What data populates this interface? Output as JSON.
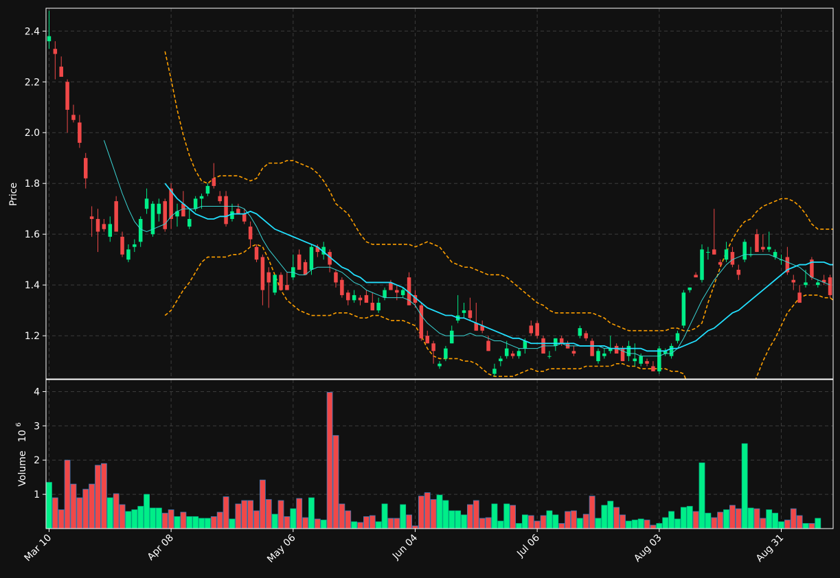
{
  "chart_data": {
    "type": "candlestick",
    "colors": {
      "background": "#111111",
      "up": "#00ee88",
      "down": "#f04848",
      "grid": "#3c3c3c",
      "frame": "#ffffff",
      "ma_short": "#3ad6d6",
      "ma_long": "#22e0ff",
      "band": "#ffa000"
    },
    "x_ticks": [
      "Mar 10",
      "Apr 08",
      "May 06",
      "Jun 04",
      "Jul 06",
      "Aug 03",
      "Aug 31"
    ],
    "x_tick_index": [
      0,
      20,
      40,
      60,
      80,
      100,
      120
    ],
    "price_panel": {
      "ylabel": "Price",
      "ylim": [
        1.03,
        2.49
      ],
      "yticks": [
        "1.2",
        "1.4",
        "1.6",
        "1.8",
        "2.0",
        "2.2",
        "2.4"
      ],
      "ytick_values": [
        1.2,
        1.4,
        1.6,
        1.8,
        2.0,
        2.2,
        2.4
      ]
    },
    "volume_panel": {
      "ylabel": "Volume",
      "exponent_label": "10",
      "exponent": "6",
      "ylim": [
        0,
        4.35
      ],
      "yticks": [
        "1",
        "2",
        "3",
        "4"
      ],
      "ytick_values": [
        1,
        2,
        3,
        4
      ]
    },
    "ohlc": [
      [
        2.36,
        2.48,
        2.33,
        2.38
      ],
      [
        2.33,
        2.36,
        2.21,
        2.31
      ],
      [
        2.26,
        2.3,
        2.23,
        2.22
      ],
      [
        2.2,
        2.21,
        2.0,
        2.09
      ],
      [
        2.07,
        2.11,
        2.04,
        2.05
      ],
      [
        2.04,
        2.07,
        1.94,
        1.96
      ],
      [
        1.9,
        1.92,
        1.78,
        1.82
      ],
      [
        1.67,
        1.71,
        1.59,
        1.66
      ],
      [
        1.66,
        1.7,
        1.53,
        1.61
      ],
      [
        1.64,
        1.66,
        1.61,
        1.62
      ],
      [
        1.59,
        1.67,
        1.57,
        1.64
      ],
      [
        1.73,
        1.75,
        1.61,
        1.61
      ],
      [
        1.59,
        1.61,
        1.51,
        1.52
      ],
      [
        1.5,
        1.56,
        1.49,
        1.54
      ],
      [
        1.55,
        1.58,
        1.53,
        1.56
      ],
      [
        1.57,
        1.67,
        1.55,
        1.66
      ],
      [
        1.7,
        1.78,
        1.68,
        1.74
      ],
      [
        1.6,
        1.73,
        1.59,
        1.72
      ],
      [
        1.68,
        1.74,
        1.65,
        1.72
      ],
      [
        1.73,
        1.74,
        1.61,
        1.62
      ],
      [
        1.78,
        1.8,
        1.62,
        1.66
      ],
      [
        1.67,
        1.72,
        1.63,
        1.69
      ],
      [
        1.72,
        1.77,
        1.68,
        1.67
      ],
      [
        1.63,
        1.7,
        1.62,
        1.66
      ],
      [
        1.7,
        1.75,
        1.69,
        1.74
      ],
      [
        1.74,
        1.76,
        1.7,
        1.75
      ],
      [
        1.76,
        1.8,
        1.75,
        1.79
      ],
      [
        1.82,
        1.88,
        1.78,
        1.79
      ],
      [
        1.75,
        1.77,
        1.72,
        1.73
      ],
      [
        1.75,
        1.77,
        1.63,
        1.64
      ],
      [
        1.66,
        1.72,
        1.65,
        1.69
      ],
      [
        1.7,
        1.72,
        1.68,
        1.68
      ],
      [
        1.68,
        1.7,
        1.64,
        1.65
      ],
      [
        1.63,
        1.65,
        1.55,
        1.58
      ],
      [
        1.55,
        1.56,
        1.49,
        1.5
      ],
      [
        1.51,
        1.52,
        1.32,
        1.38
      ],
      [
        1.45,
        1.47,
        1.31,
        1.41
      ],
      [
        1.37,
        1.44,
        1.36,
        1.44
      ],
      [
        1.44,
        1.45,
        1.38,
        1.38
      ],
      [
        1.4,
        1.45,
        1.38,
        1.38
      ],
      [
        1.43,
        1.52,
        1.42,
        1.47
      ],
      [
        1.52,
        1.54,
        1.46,
        1.46
      ],
      [
        1.49,
        1.5,
        1.45,
        1.44
      ],
      [
        1.46,
        1.56,
        1.44,
        1.55
      ],
      [
        1.55,
        1.56,
        1.51,
        1.53
      ],
      [
        1.52,
        1.57,
        1.5,
        1.55
      ],
      [
        1.53,
        1.54,
        1.45,
        1.48
      ],
      [
        1.45,
        1.46,
        1.39,
        1.41
      ],
      [
        1.42,
        1.43,
        1.35,
        1.36
      ],
      [
        1.37,
        1.38,
        1.32,
        1.34
      ],
      [
        1.34,
        1.38,
        1.33,
        1.36
      ],
      [
        1.35,
        1.36,
        1.32,
        1.34
      ],
      [
        1.36,
        1.38,
        1.33,
        1.33
      ],
      [
        1.33,
        1.37,
        1.3,
        1.3
      ],
      [
        1.3,
        1.35,
        1.29,
        1.33
      ],
      [
        1.35,
        1.39,
        1.34,
        1.38
      ],
      [
        1.41,
        1.42,
        1.38,
        1.38
      ],
      [
        1.38,
        1.4,
        1.34,
        1.37
      ],
      [
        1.36,
        1.39,
        1.35,
        1.38
      ],
      [
        1.43,
        1.45,
        1.32,
        1.32
      ],
      [
        1.36,
        1.38,
        1.31,
        1.33
      ],
      [
        1.32,
        1.33,
        1.18,
        1.19
      ],
      [
        1.2,
        1.22,
        1.17,
        1.17
      ],
      [
        1.17,
        1.18,
        1.09,
        1.14
      ],
      [
        1.08,
        1.1,
        1.07,
        1.09
      ],
      [
        1.11,
        1.16,
        1.1,
        1.15
      ],
      [
        1.17,
        1.24,
        1.17,
        1.22
      ],
      [
        1.26,
        1.36,
        1.25,
        1.28
      ],
      [
        1.29,
        1.33,
        1.27,
        1.3
      ],
      [
        1.3,
        1.35,
        1.26,
        1.27
      ],
      [
        1.25,
        1.33,
        1.22,
        1.22
      ],
      [
        1.24,
        1.26,
        1.21,
        1.22
      ],
      [
        1.18,
        1.2,
        1.14,
        1.14
      ],
      [
        1.05,
        1.09,
        1.04,
        1.07
      ],
      [
        1.1,
        1.12,
        1.08,
        1.11
      ],
      [
        1.12,
        1.18,
        1.11,
        1.15
      ],
      [
        1.13,
        1.14,
        1.11,
        1.12
      ],
      [
        1.12,
        1.15,
        1.11,
        1.14
      ],
      [
        1.15,
        1.19,
        1.13,
        1.18
      ],
      [
        1.24,
        1.26,
        1.2,
        1.21
      ],
      [
        1.25,
        1.26,
        1.19,
        1.2
      ],
      [
        1.19,
        1.2,
        1.13,
        1.13
      ],
      [
        1.12,
        1.14,
        1.11,
        1.12
      ],
      [
        1.16,
        1.19,
        1.14,
        1.19
      ],
      [
        1.19,
        1.2,
        1.16,
        1.17
      ],
      [
        1.17,
        1.18,
        1.15,
        1.15
      ],
      [
        1.14,
        1.16,
        1.12,
        1.13
      ],
      [
        1.2,
        1.24,
        1.19,
        1.23
      ],
      [
        1.21,
        1.22,
        1.18,
        1.19
      ],
      [
        1.18,
        1.19,
        1.12,
        1.12
      ],
      [
        1.1,
        1.15,
        1.09,
        1.14
      ],
      [
        1.12,
        1.15,
        1.11,
        1.13
      ],
      [
        1.14,
        1.2,
        1.13,
        1.15
      ],
      [
        1.16,
        1.17,
        1.13,
        1.13
      ],
      [
        1.15,
        1.16,
        1.1,
        1.1
      ],
      [
        1.12,
        1.18,
        1.1,
        1.16
      ],
      [
        1.1,
        1.17,
        1.08,
        1.11
      ],
      [
        1.09,
        1.13,
        1.08,
        1.12
      ],
      [
        1.1,
        1.11,
        1.08,
        1.09
      ],
      [
        1.08,
        1.1,
        1.06,
        1.06
      ],
      [
        1.06,
        1.16,
        1.05,
        1.15
      ],
      [
        1.13,
        1.15,
        1.12,
        1.14
      ],
      [
        1.12,
        1.17,
        1.11,
        1.16
      ],
      [
        1.18,
        1.22,
        1.17,
        1.21
      ],
      [
        1.24,
        1.38,
        1.23,
        1.37
      ],
      [
        1.38,
        1.39,
        1.37,
        1.39
      ],
      [
        1.44,
        1.45,
        1.43,
        1.43
      ],
      [
        1.42,
        1.56,
        1.41,
        1.54
      ],
      [
        1.53,
        1.55,
        1.5,
        1.53
      ],
      [
        1.54,
        1.7,
        1.52,
        1.52
      ],
      [
        1.49,
        1.5,
        1.47,
        1.48
      ],
      [
        1.5,
        1.57,
        1.49,
        1.54
      ],
      [
        1.53,
        1.55,
        1.47,
        1.48
      ],
      [
        1.46,
        1.48,
        1.42,
        1.44
      ],
      [
        1.5,
        1.58,
        1.49,
        1.57
      ],
      [
        1.52,
        1.55,
        1.51,
        1.52
      ],
      [
        1.6,
        1.62,
        1.53,
        1.53
      ],
      [
        1.55,
        1.6,
        1.53,
        1.54
      ],
      [
        1.54,
        1.61,
        1.53,
        1.55
      ],
      [
        1.51,
        1.54,
        1.5,
        1.53
      ],
      [
        1.5,
        1.52,
        1.48,
        1.5
      ],
      [
        1.51,
        1.55,
        1.44,
        1.45
      ],
      [
        1.42,
        1.44,
        1.38,
        1.41
      ],
      [
        1.37,
        1.4,
        1.33,
        1.33
      ],
      [
        1.4,
        1.46,
        1.39,
        1.41
      ],
      [
        1.5,
        1.51,
        1.42,
        1.43
      ],
      [
        1.4,
        1.42,
        1.39,
        1.41
      ],
      [
        1.42,
        1.44,
        1.4,
        1.41
      ],
      [
        1.43,
        1.44,
        1.35,
        1.36
      ]
    ],
    "volume": [
      1.35,
      0.9,
      0.55,
      2.0,
      1.3,
      0.9,
      1.15,
      1.3,
      1.85,
      1.9,
      0.9,
      1.02,
      0.7,
      0.5,
      0.55,
      0.65,
      1.0,
      0.6,
      0.6,
      0.45,
      0.55,
      0.35,
      0.48,
      0.35,
      0.35,
      0.3,
      0.3,
      0.35,
      0.48,
      0.93,
      0.28,
      0.72,
      0.82,
      0.82,
      0.52,
      1.42,
      0.85,
      0.42,
      0.82,
      0.35,
      0.58,
      0.88,
      0.32,
      0.9,
      0.28,
      0.25,
      3.98,
      2.72,
      0.72,
      0.52,
      0.2,
      0.18,
      0.35,
      0.38,
      0.2,
      0.72,
      0.3,
      0.3,
      0.7,
      0.4,
      0.08,
      0.95,
      1.05,
      0.85,
      0.98,
      0.82,
      0.52,
      0.52,
      0.4,
      0.7,
      0.82,
      0.3,
      0.32,
      0.72,
      0.22,
      0.72,
      0.68,
      0.15,
      0.4,
      0.38,
      0.22,
      0.38,
      0.52,
      0.4,
      0.15,
      0.5,
      0.52,
      0.3,
      0.42,
      0.95,
      0.3,
      0.68,
      0.8,
      0.62,
      0.4,
      0.22,
      0.25,
      0.28,
      0.25,
      0.1,
      0.15,
      0.32,
      0.5,
      0.28,
      0.62,
      0.65,
      0.5,
      1.92,
      0.45,
      0.32,
      0.48,
      0.55,
      0.68,
      0.58,
      2.48,
      0.6,
      0.58,
      0.3,
      0.55,
      0.45,
      0.2,
      0.25,
      0.58,
      0.38,
      0.15,
      0.15,
      0.3
    ],
    "ma_short": [
      null,
      null,
      null,
      null,
      null,
      null,
      null,
      null,
      null,
      1.97,
      1.9,
      1.83,
      1.76,
      1.7,
      1.65,
      1.62,
      1.61,
      1.62,
      1.63,
      1.64,
      1.67,
      1.69,
      1.7,
      1.7,
      1.7,
      1.71,
      1.71,
      1.71,
      1.71,
      1.71,
      1.71,
      1.71,
      1.7,
      1.67,
      1.63,
      1.58,
      1.54,
      1.51,
      1.48,
      1.45,
      1.45,
      1.44,
      1.44,
      1.46,
      1.47,
      1.47,
      1.47,
      1.46,
      1.45,
      1.43,
      1.41,
      1.4,
      1.38,
      1.37,
      1.36,
      1.35,
      1.35,
      1.35,
      1.35,
      1.34,
      1.32,
      1.28,
      1.25,
      1.23,
      1.21,
      1.2,
      1.2,
      1.2,
      1.2,
      1.21,
      1.2,
      1.2,
      1.19,
      1.18,
      1.18,
      1.17,
      1.16,
      1.15,
      1.15,
      1.15,
      1.15,
      1.16,
      1.16,
      1.16,
      1.17,
      1.16,
      1.16,
      1.16,
      1.16,
      1.16,
      1.16,
      1.15,
      1.15,
      1.15,
      1.14,
      1.13,
      1.13,
      1.12,
      1.12,
      1.12,
      1.12,
      1.13,
      1.13,
      1.15,
      1.19,
      1.24,
      1.29,
      1.34,
      1.38,
      1.42,
      1.45,
      1.48,
      1.5,
      1.51,
      1.52,
      1.52,
      1.52,
      1.52,
      1.52,
      1.51,
      1.5,
      1.49,
      1.48,
      1.47,
      1.45,
      1.43,
      1.42,
      1.41,
      1.4
    ],
    "ma_long": [
      null,
      null,
      null,
      null,
      null,
      null,
      null,
      null,
      null,
      null,
      null,
      null,
      null,
      null,
      null,
      null,
      null,
      null,
      null,
      1.8,
      1.77,
      1.74,
      1.72,
      1.7,
      1.68,
      1.67,
      1.66,
      1.66,
      1.67,
      1.67,
      1.68,
      1.68,
      1.68,
      1.69,
      1.68,
      1.66,
      1.64,
      1.62,
      1.61,
      1.6,
      1.59,
      1.58,
      1.57,
      1.56,
      1.55,
      1.53,
      1.51,
      1.49,
      1.47,
      1.46,
      1.44,
      1.43,
      1.41,
      1.41,
      1.41,
      1.41,
      1.41,
      1.4,
      1.39,
      1.37,
      1.35,
      1.33,
      1.31,
      1.3,
      1.29,
      1.28,
      1.28,
      1.27,
      1.27,
      1.26,
      1.25,
      1.24,
      1.23,
      1.22,
      1.21,
      1.2,
      1.19,
      1.19,
      1.18,
      1.17,
      1.17,
      1.17,
      1.17,
      1.17,
      1.17,
      1.17,
      1.17,
      1.16,
      1.16,
      1.16,
      1.16,
      1.16,
      1.15,
      1.15,
      1.15,
      1.15,
      1.15,
      1.15,
      1.14,
      1.14,
      1.14,
      1.14,
      1.15,
      1.15,
      1.16,
      1.17,
      1.18,
      1.2,
      1.22,
      1.23,
      1.25,
      1.27,
      1.29,
      1.3,
      1.32,
      1.34,
      1.36,
      1.38,
      1.4,
      1.42,
      1.44,
      1.46,
      1.47,
      1.48,
      1.48,
      1.49,
      1.49,
      1.49,
      1.48,
      1.48,
      1.47
    ],
    "band_upper": [
      null,
      null,
      null,
      null,
      null,
      null,
      null,
      null,
      null,
      null,
      null,
      null,
      null,
      null,
      null,
      null,
      null,
      null,
      null,
      2.32,
      2.21,
      2.09,
      1.99,
      1.91,
      1.85,
      1.81,
      1.8,
      1.82,
      1.83,
      1.83,
      1.83,
      1.83,
      1.82,
      1.81,
      1.82,
      1.86,
      1.88,
      1.88,
      1.88,
      1.89,
      1.89,
      1.88,
      1.87,
      1.86,
      1.84,
      1.81,
      1.77,
      1.72,
      1.7,
      1.68,
      1.64,
      1.6,
      1.57,
      1.56,
      1.56,
      1.56,
      1.56,
      1.56,
      1.56,
      1.56,
      1.55,
      1.56,
      1.57,
      1.56,
      1.55,
      1.52,
      1.49,
      1.48,
      1.47,
      1.47,
      1.46,
      1.45,
      1.44,
      1.44,
      1.44,
      1.43,
      1.41,
      1.39,
      1.37,
      1.35,
      1.33,
      1.32,
      1.3,
      1.29,
      1.29,
      1.29,
      1.29,
      1.29,
      1.29,
      1.29,
      1.28,
      1.27,
      1.25,
      1.24,
      1.23,
      1.22,
      1.22,
      1.22,
      1.22,
      1.22,
      1.22,
      1.22,
      1.23,
      1.23,
      1.22,
      1.22,
      1.23,
      1.25,
      1.33,
      1.4,
      1.47,
      1.53,
      1.58,
      1.62,
      1.65,
      1.66,
      1.69,
      1.71,
      1.72,
      1.73,
      1.74,
      1.74,
      1.73,
      1.71,
      1.68,
      1.64,
      1.62,
      1.62,
      1.62,
      1.62,
      1.62,
      1.61,
      1.61
    ],
    "band_lower": [
      null,
      null,
      null,
      null,
      null,
      null,
      null,
      null,
      null,
      null,
      null,
      null,
      null,
      null,
      null,
      null,
      null,
      null,
      null,
      1.28,
      1.3,
      1.34,
      1.38,
      1.41,
      1.45,
      1.49,
      1.51,
      1.51,
      1.51,
      1.51,
      1.52,
      1.52,
      1.53,
      1.55,
      1.56,
      1.55,
      1.5,
      1.44,
      1.38,
      1.34,
      1.32,
      1.3,
      1.29,
      1.28,
      1.28,
      1.28,
      1.28,
      1.29,
      1.29,
      1.29,
      1.28,
      1.27,
      1.27,
      1.28,
      1.28,
      1.27,
      1.26,
      1.26,
      1.26,
      1.25,
      1.24,
      1.2,
      1.15,
      1.12,
      1.11,
      1.11,
      1.11,
      1.11,
      1.1,
      1.1,
      1.09,
      1.07,
      1.05,
      1.04,
      1.04,
      1.04,
      1.04,
      1.05,
      1.06,
      1.07,
      1.06,
      1.06,
      1.07,
      1.07,
      1.07,
      1.07,
      1.07,
      1.07,
      1.08,
      1.08,
      1.08,
      1.08,
      1.08,
      1.09,
      1.09,
      1.08,
      1.08,
      1.07,
      1.07,
      1.07,
      1.07,
      1.07,
      1.06,
      1.06,
      1.05,
      0.99,
      0.94,
      0.88,
      0.83,
      0.79,
      0.75,
      0.75,
      0.78,
      0.82,
      0.9,
      0.98,
      1.04,
      1.1,
      1.15,
      1.19,
      1.24,
      1.29,
      1.32,
      1.35,
      1.36,
      1.36,
      1.36,
      1.35,
      1.35,
      1.33
    ]
  }
}
